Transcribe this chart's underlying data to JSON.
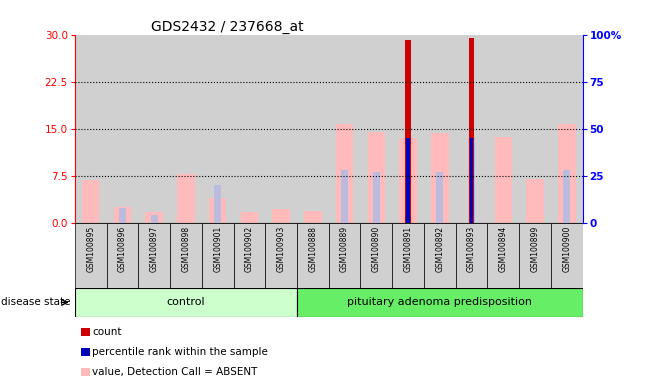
{
  "title": "GDS2432 / 237668_at",
  "samples": [
    "GSM100895",
    "GSM100896",
    "GSM100897",
    "GSM100898",
    "GSM100901",
    "GSM100902",
    "GSM100903",
    "GSM100888",
    "GSM100889",
    "GSM100890",
    "GSM100891",
    "GSM100892",
    "GSM100893",
    "GSM100894",
    "GSM100899",
    "GSM100900"
  ],
  "n_control": 7,
  "n_adenoma": 9,
  "count_right": [
    0,
    0,
    0,
    0,
    0,
    0,
    0,
    0,
    0,
    0,
    97,
    0,
    98,
    0,
    0,
    0
  ],
  "percentile_rank_right": [
    0,
    0,
    0,
    0,
    0,
    0,
    0,
    0,
    0,
    0,
    45,
    0,
    45,
    0,
    0,
    0
  ],
  "value_absent_left": [
    6.8,
    2.5,
    1.7,
    7.8,
    4.0,
    1.7,
    2.2,
    1.8,
    15.8,
    14.5,
    13.5,
    14.3,
    0,
    13.7,
    6.9,
    15.8
  ],
  "rank_absent_right": [
    0,
    8,
    4,
    0,
    20,
    0,
    0,
    0,
    28,
    27,
    0,
    27,
    45,
    0,
    0,
    28
  ],
  "ylim_left": [
    0,
    30
  ],
  "ylim_right": [
    0,
    100
  ],
  "yticks_left": [
    0,
    7.5,
    15,
    22.5,
    30
  ],
  "yticks_right": [
    0,
    25,
    50,
    75,
    100
  ],
  "color_count": "#cc0000",
  "color_percentile": "#0000bb",
  "color_value_absent": "#ffbbbb",
  "color_rank_absent": "#bbbbdd",
  "color_control_bg": "#ccffcc",
  "color_adenoma_bg": "#66ee66",
  "legend_items": [
    {
      "color": "#cc0000",
      "label": "count"
    },
    {
      "color": "#0000bb",
      "label": "percentile rank within the sample"
    },
    {
      "color": "#ffbbbb",
      "label": "value, Detection Call = ABSENT"
    },
    {
      "color": "#bbbbdd",
      "label": "rank, Detection Call = ABSENT"
    }
  ]
}
